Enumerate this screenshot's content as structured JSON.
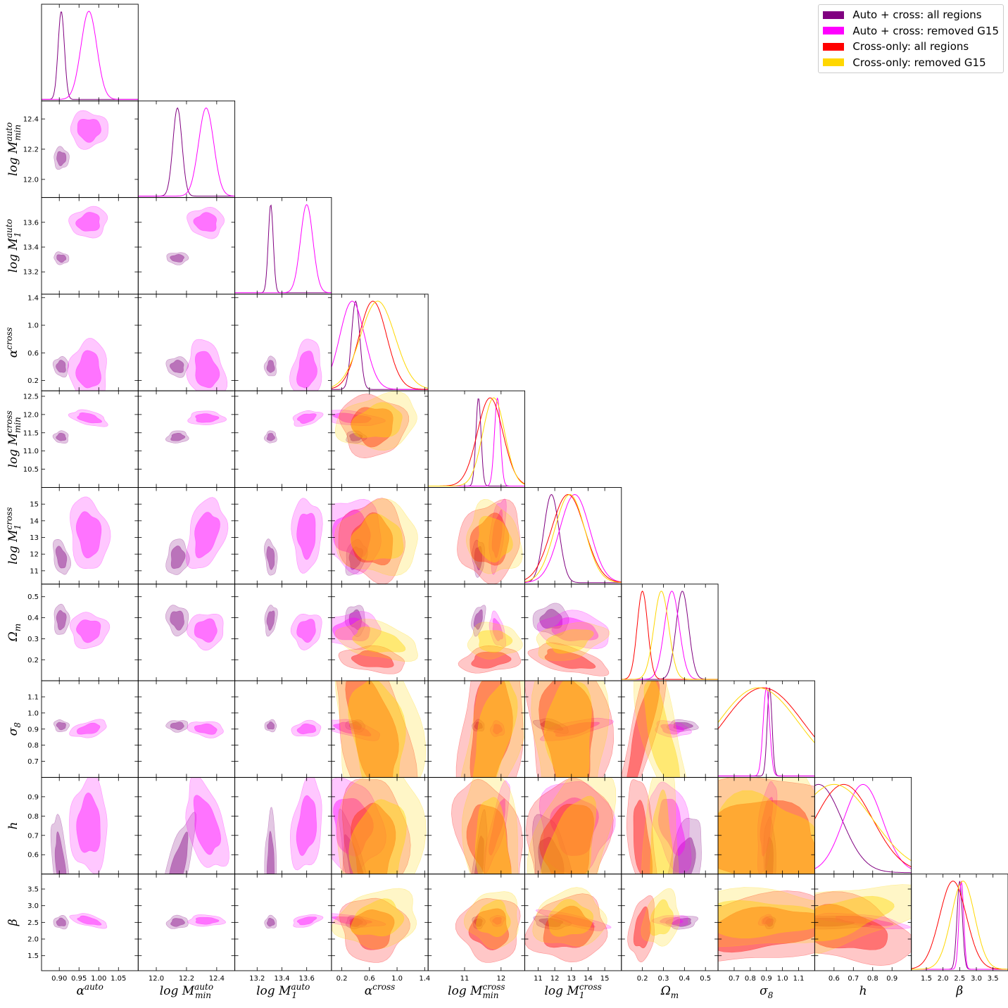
{
  "chart_data": {
    "type": "corner",
    "title": "",
    "parameters": [
      {
        "name": "alpha_auto",
        "label": "α^auto",
        "base": "α",
        "sup": "auto",
        "sub": "",
        "range": [
          0.855,
          1.1
        ],
        "ticks": [
          0.9,
          0.95,
          1.0,
          1.05
        ],
        "tick_labels": [
          "0.90",
          "0.95",
          "1.00",
          "1.05"
        ]
      },
      {
        "name": "logMmin_auto",
        "label": "log M_min^auto",
        "base": "log M",
        "sup": "auto",
        "sub": "min",
        "range": [
          11.88,
          12.52
        ],
        "ticks": [
          12.0,
          12.2,
          12.4
        ],
        "tick_labels": [
          "12.0",
          "12.2",
          "12.4"
        ]
      },
      {
        "name": "logM1_auto",
        "label": "log M_1^auto",
        "base": "log M",
        "sup": "auto",
        "sub": "1",
        "range": [
          13.02,
          13.8
        ],
        "ticks": [
          13.2,
          13.4,
          13.6
        ],
        "tick_labels": [
          "13.2",
          "13.4",
          "13.6"
        ]
      },
      {
        "name": "alpha_cross",
        "label": "α^cross",
        "base": "α",
        "sup": "cross",
        "sub": "",
        "range": [
          0.05,
          1.45
        ],
        "ticks": [
          0.2,
          0.6,
          1.0,
          1.4
        ],
        "tick_labels": [
          "0.2",
          "0.6",
          "1.0",
          "1.4"
        ]
      },
      {
        "name": "logMmin_cross",
        "label": "log M_min^cross",
        "base": "log M",
        "sup": "cross",
        "sub": "min",
        "range": [
          10.0,
          12.65
        ],
        "ticks": [
          10.5,
          11.0,
          11.5,
          12.0,
          12.5
        ],
        "tick_labels": [
          "10.5",
          "11.0",
          "11.5",
          "12.0",
          "12.5"
        ],
        "xticks": [
          11,
          12
        ],
        "xtick_labels": [
          "11",
          "12"
        ]
      },
      {
        "name": "logM1_cross",
        "label": "log M_1^cross",
        "base": "log M",
        "sup": "cross",
        "sub": "1",
        "range": [
          10.2,
          16.0
        ],
        "ticks": [
          11,
          12,
          13,
          14,
          15
        ],
        "tick_labels": [
          "11",
          "12",
          "13",
          "14",
          "15"
        ]
      },
      {
        "name": "Omega_m",
        "label": "Ω_m",
        "base": "Ω",
        "sup": "",
        "sub": "m",
        "range": [
          0.1,
          0.56
        ],
        "ticks": [
          0.2,
          0.3,
          0.4,
          0.5
        ],
        "tick_labels": [
          "0.2",
          "0.3",
          "0.4",
          "0.5"
        ]
      },
      {
        "name": "sigma_8",
        "label": "σ_8",
        "base": "σ",
        "sup": "",
        "sub": "8",
        "range": [
          0.6,
          1.2
        ],
        "ticks": [
          0.7,
          0.8,
          0.9,
          1.0,
          1.1
        ],
        "tick_labels": [
          "0.7",
          "0.8",
          "0.9",
          "1.0",
          "1.1"
        ]
      },
      {
        "name": "h",
        "label": "h",
        "base": "h",
        "sup": "",
        "sub": "",
        "range": [
          0.5,
          1.0
        ],
        "ticks": [
          0.6,
          0.7,
          0.8,
          0.9
        ],
        "tick_labels": [
          "0.6",
          "0.7",
          "0.8",
          "0.9"
        ]
      },
      {
        "name": "beta",
        "label": "β",
        "base": "β",
        "sup": "",
        "sub": "",
        "range": [
          1.05,
          3.95
        ],
        "ticks": [
          1.5,
          2.0,
          2.5,
          3.0,
          3.5
        ],
        "tick_labels": [
          "1.5",
          "2.0",
          "2.5",
          "3.0",
          "3.5"
        ]
      }
    ],
    "series": [
      {
        "name": "Auto + cross: all regions",
        "color": "#800080",
        "params": "all",
        "marginals": {
          "alpha_auto": {
            "mean": 0.905,
            "sd": 0.008
          },
          "logMmin_auto": {
            "mean": 12.14,
            "sd": 0.03
          },
          "logM1_auto": {
            "mean": 13.31,
            "sd": 0.02
          },
          "alpha_cross": {
            "mean": 0.4,
            "sd": 0.06
          },
          "logMmin_cross": {
            "mean": 11.38,
            "sd": 0.07
          },
          "logM1_cross": {
            "mean": 11.8,
            "sd": 0.45
          },
          "Omega_m": {
            "mean": 0.39,
            "sd": 0.03
          },
          "sigma_8": {
            "mean": 0.92,
            "sd": 0.015
          },
          "h": {
            "mean": 0.52,
            "sd": 0.12
          },
          "beta": {
            "mean": 2.5,
            "sd": 0.08
          }
        }
      },
      {
        "name": "Auto + cross: removed G15",
        "color": "#ff00ff",
        "params": "all",
        "marginals": {
          "alpha_auto": {
            "mean": 0.975,
            "sd": 0.02
          },
          "logMmin_auto": {
            "mean": 12.33,
            "sd": 0.05
          },
          "logM1_auto": {
            "mean": 13.6,
            "sd": 0.05
          },
          "alpha_cross": {
            "mean": 0.35,
            "sd": 0.18
          },
          "logMmin_cross": {
            "mean": 11.9,
            "sd": 0.08
          },
          "logM1_cross": {
            "mean": 13.2,
            "sd": 0.9
          },
          "Omega_m": {
            "mean": 0.34,
            "sd": 0.035
          },
          "sigma_8": {
            "mean": 0.9,
            "sd": 0.02
          },
          "h": {
            "mean": 0.75,
            "sd": 0.1
          },
          "beta": {
            "mean": 2.55,
            "sd": 0.07
          }
        }
      },
      {
        "name": "Cross-only: all regions",
        "color": "#ff0000",
        "params": "cross+cosmology",
        "marginals": {
          "alpha_cross": {
            "mean": 0.65,
            "sd": 0.2
          },
          "logMmin_cross": {
            "mean": 11.7,
            "sd": 0.35
          },
          "logM1_cross": {
            "mean": 12.8,
            "sd": 1.0
          },
          "Omega_m": {
            "mean": 0.2,
            "sd": 0.025
          },
          "sigma_8": {
            "mean": 0.88,
            "sd": 0.25
          },
          "h": {
            "mean": 0.65,
            "sd": 0.15
          },
          "beta": {
            "mean": 2.3,
            "sd": 0.4
          }
        }
      },
      {
        "name": "Cross-only: removed G15",
        "color": "#ffd700",
        "params": "cross+cosmology",
        "marginals": {
          "alpha_cross": {
            "mean": 0.72,
            "sd": 0.25
          },
          "logMmin_cross": {
            "mean": 11.8,
            "sd": 0.3
          },
          "logM1_cross": {
            "mean": 12.9,
            "sd": 0.9
          },
          "Omega_m": {
            "mean": 0.29,
            "sd": 0.035
          },
          "sigma_8": {
            "mean": 0.85,
            "sd": 0.25
          },
          "h": {
            "mean": 0.6,
            "sd": 0.2
          },
          "beta": {
            "mean": 2.6,
            "sd": 0.35
          }
        }
      }
    ],
    "contour_levels": [
      "68%",
      "95%"
    ],
    "legend_position": "top-right"
  }
}
